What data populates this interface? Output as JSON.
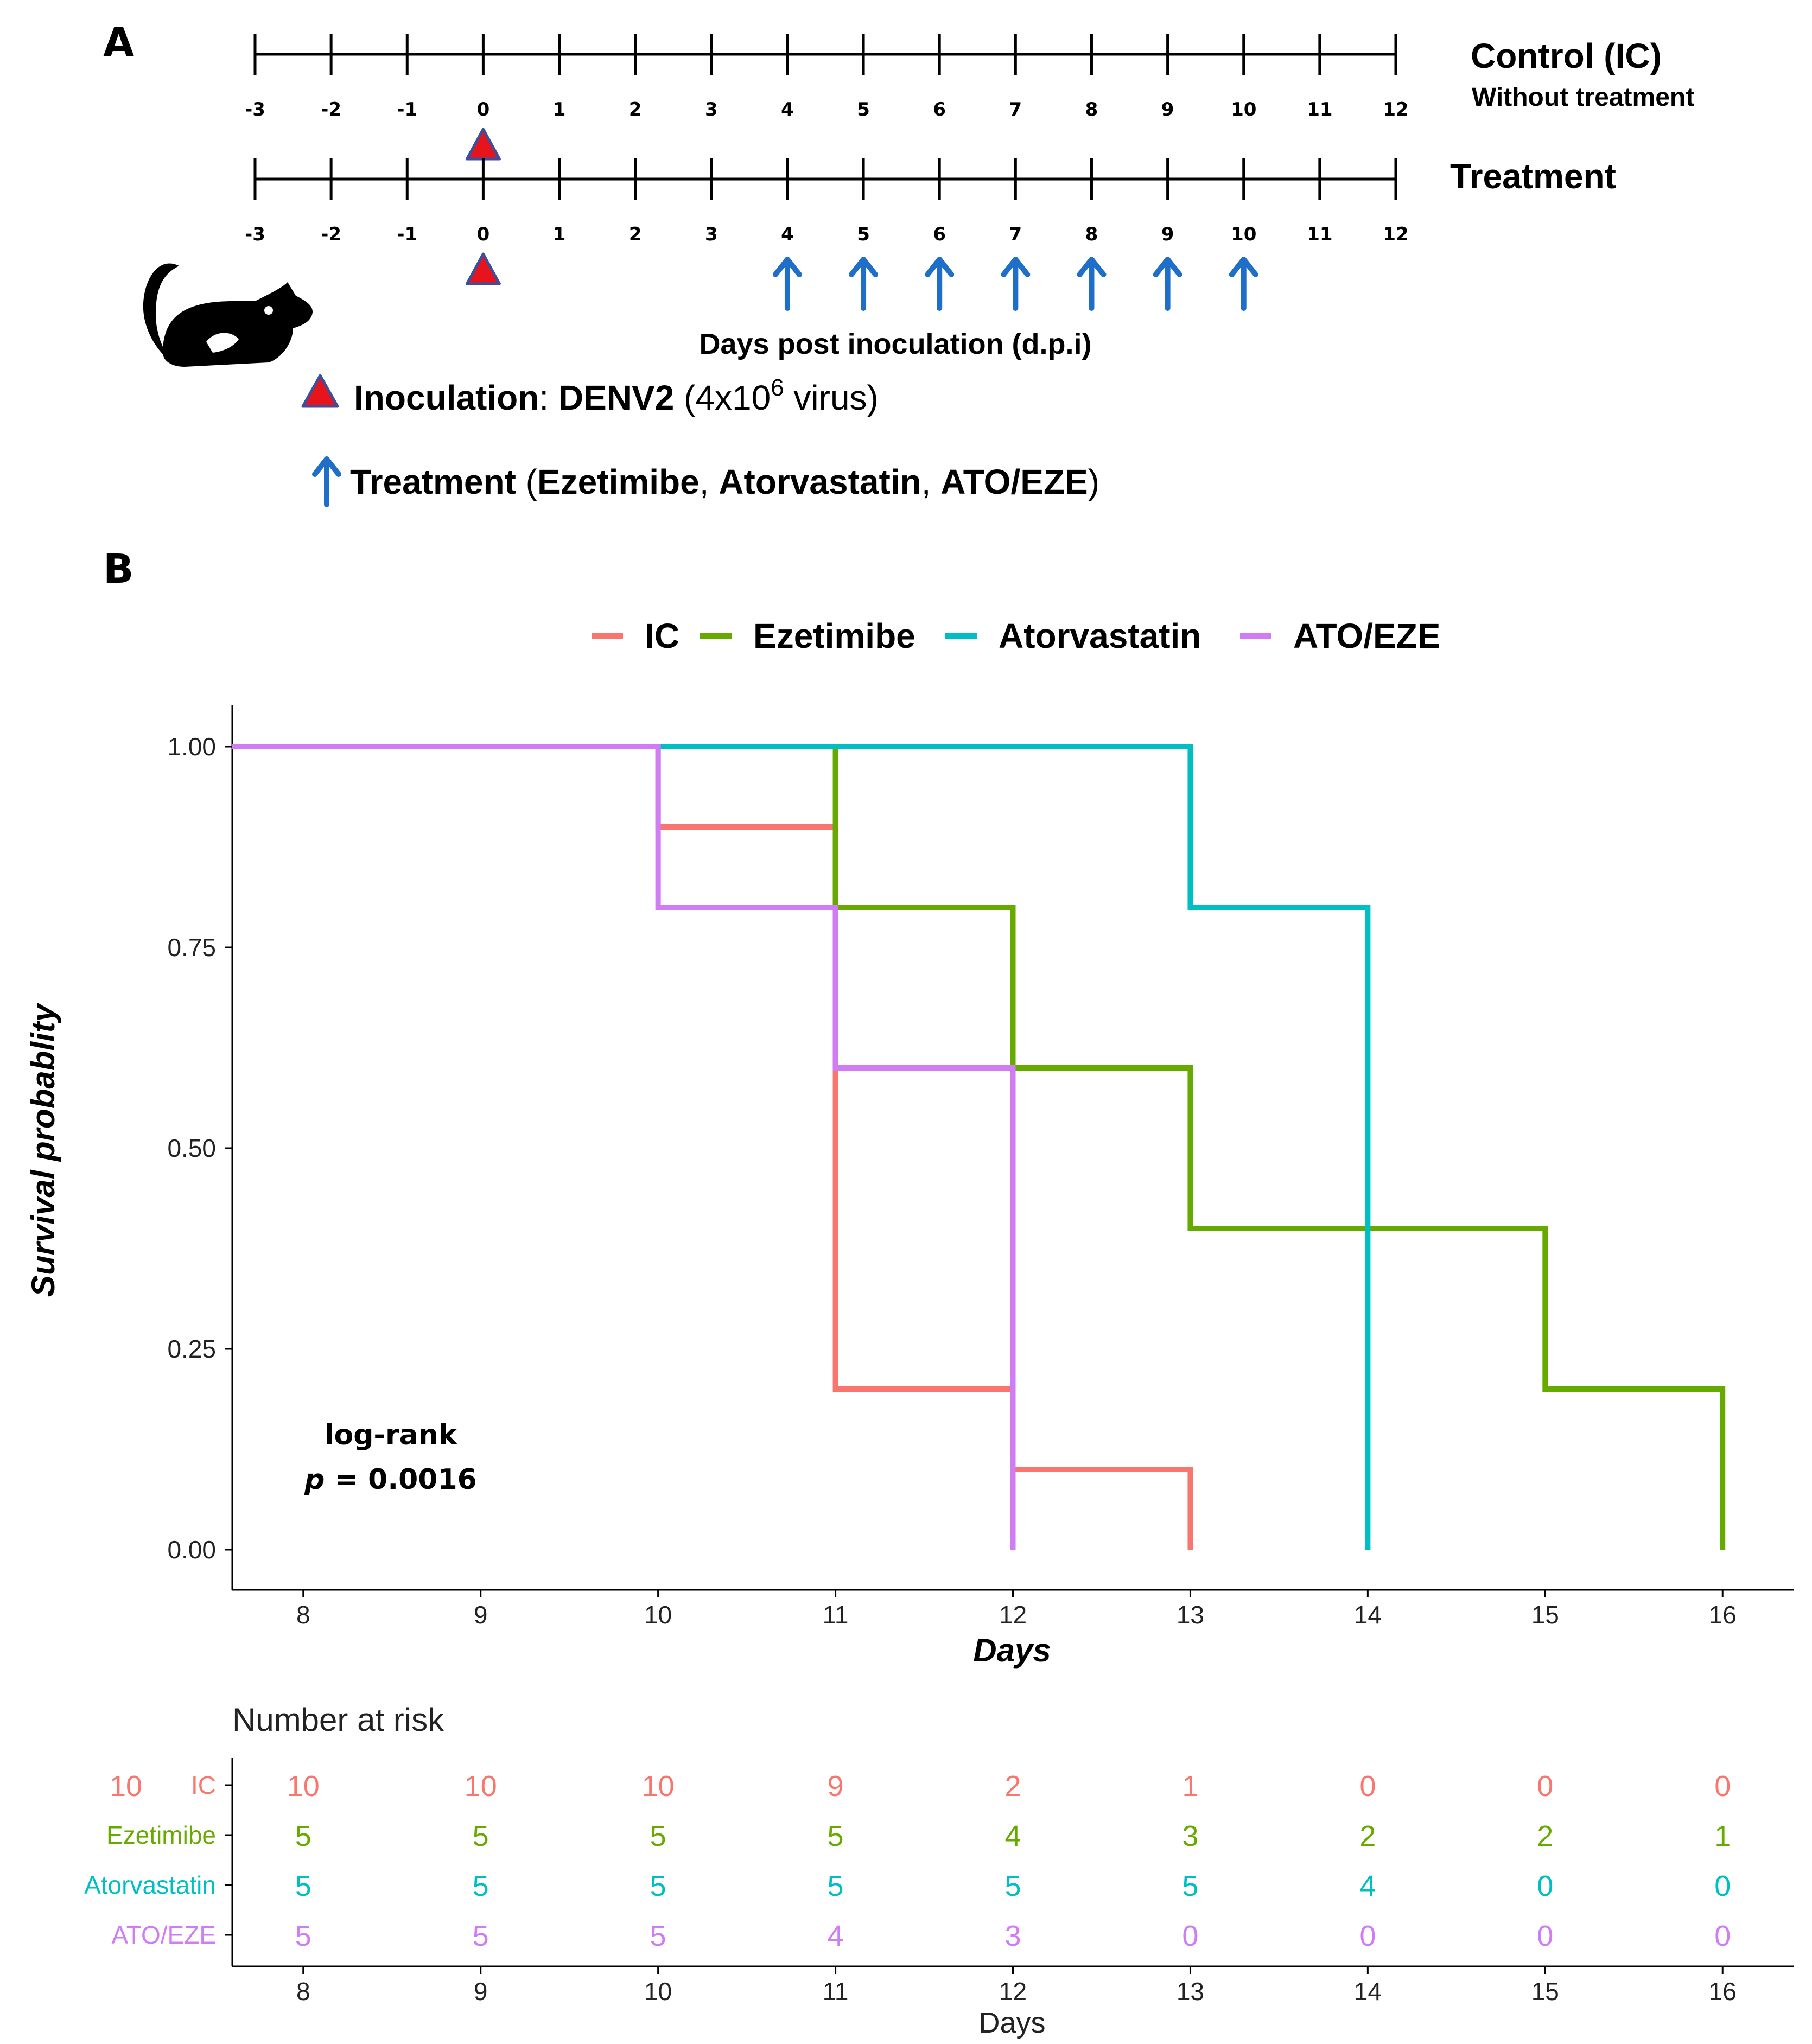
{
  "panel_a": {
    "letter": "A",
    "timelines": [
      {
        "title": "Control  (IC)",
        "subtitle": "Without treatment"
      },
      {
        "title": "Treatment",
        "subtitle": ""
      }
    ],
    "ticks": [
      "-3",
      "-2",
      "-1",
      "0",
      "1",
      "2",
      "3",
      "4",
      "5",
      "6",
      "7",
      "8",
      "9",
      "10",
      "11",
      "12"
    ],
    "inoculation_day": "0",
    "treatment_days": [
      "4",
      "5",
      "6",
      "7",
      "8",
      "9",
      "10"
    ],
    "axis_label": "Days post inoculation (d.p.i)",
    "legend": {
      "inoculation_label": "Inoculation",
      "inoculation_sep": ": ",
      "inoculation_agent": "DENV2",
      "inoculation_dose_pre": " (4x10",
      "inoculation_dose_exp": "6",
      "inoculation_dose_post": " virus)",
      "treatment_label": "Treatment",
      "treatment_open": " (",
      "treatment_drugs": [
        "Ezetimibe",
        "Atorvastatin",
        "ATO/EZE"
      ],
      "treatment_seps": [
        ", ",
        ",  "
      ],
      "treatment_close": ")"
    },
    "icons": {
      "mouse": "mouse-icon",
      "triangle": "red-triangle-icon",
      "arrow": "blue-arrow-up-icon"
    },
    "colors": {
      "triangle_fill": "#e8141b",
      "triangle_stroke": "#3b4ea0",
      "arrow": "#1f6fc8"
    }
  },
  "panel_b": {
    "letter": "B",
    "chart_data": {
      "type": "line",
      "subtype": "kaplan-meier step",
      "title": "",
      "xlabel": "Days",
      "ylabel": "Survival probablity",
      "xlim": [
        7.6,
        16.4
      ],
      "ylim": [
        0,
        1
      ],
      "xticks": [
        8,
        9,
        10,
        11,
        12,
        13,
        14,
        15,
        16
      ],
      "yticks": [
        0,
        0.25,
        0.5,
        0.75,
        1.0
      ],
      "ytick_labels": [
        "0.00",
        "0.25",
        "0.50",
        "0.75",
        "1.00"
      ],
      "grid": false,
      "legend_position": "top",
      "series": [
        {
          "name": "IC",
          "color": "#f8766d",
          "steps": [
            [
              7.6,
              1.0
            ],
            [
              10,
              0.9
            ],
            [
              11,
              0.2
            ],
            [
              12,
              0.1
            ],
            [
              13,
              0.0
            ]
          ],
          "end": 13
        },
        {
          "name": "Ezetimibe",
          "color": "#66aa00",
          "steps": [
            [
              7.6,
              1.0
            ],
            [
              11,
              0.8
            ],
            [
              12,
              0.6
            ],
            [
              13,
              0.4
            ],
            [
              15,
              0.2
            ],
            [
              16,
              0.0
            ]
          ],
          "end": 16
        },
        {
          "name": "Atorvastatin",
          "color": "#00bfc4",
          "steps": [
            [
              7.6,
              1.0
            ],
            [
              13,
              0.8
            ],
            [
              14,
              0.0
            ]
          ],
          "end": 14
        },
        {
          "name": "ATO/EZE",
          "color": "#d07cf5",
          "steps": [
            [
              7.6,
              1.0
            ],
            [
              10,
              0.8
            ],
            [
              11,
              0.6
            ],
            [
              12,
              0.0
            ]
          ],
          "end": 12
        }
      ],
      "annotation": {
        "line1": "log-rank",
        "p_italic": "p",
        "p_rest": " = 0.0016"
      }
    },
    "risk_table": {
      "title": "Number at risk",
      "xlabel": "Days",
      "rows": [
        {
          "label": "IC",
          "prefix": "10",
          "color": "#f8766d",
          "values": [
            "10",
            "10",
            "10",
            "9",
            "2",
            "1",
            "0",
            "0",
            "0"
          ]
        },
        {
          "label": "Ezetimibe",
          "prefix": "",
          "color": "#66aa00",
          "values": [
            "5",
            "5",
            "5",
            "5",
            "4",
            "3",
            "2",
            "2",
            "1"
          ]
        },
        {
          "label": "Atorvastatin",
          "prefix": "",
          "color": "#00bfc4",
          "values": [
            "5",
            "5",
            "5",
            "5",
            "5",
            "5",
            "4",
            "0",
            "0"
          ]
        },
        {
          "label": "ATO/EZE",
          "prefix": "",
          "color": "#d07cf5",
          "values": [
            "5",
            "5",
            "5",
            "4",
            "3",
            "0",
            "0",
            "0",
            "0"
          ]
        }
      ]
    }
  }
}
